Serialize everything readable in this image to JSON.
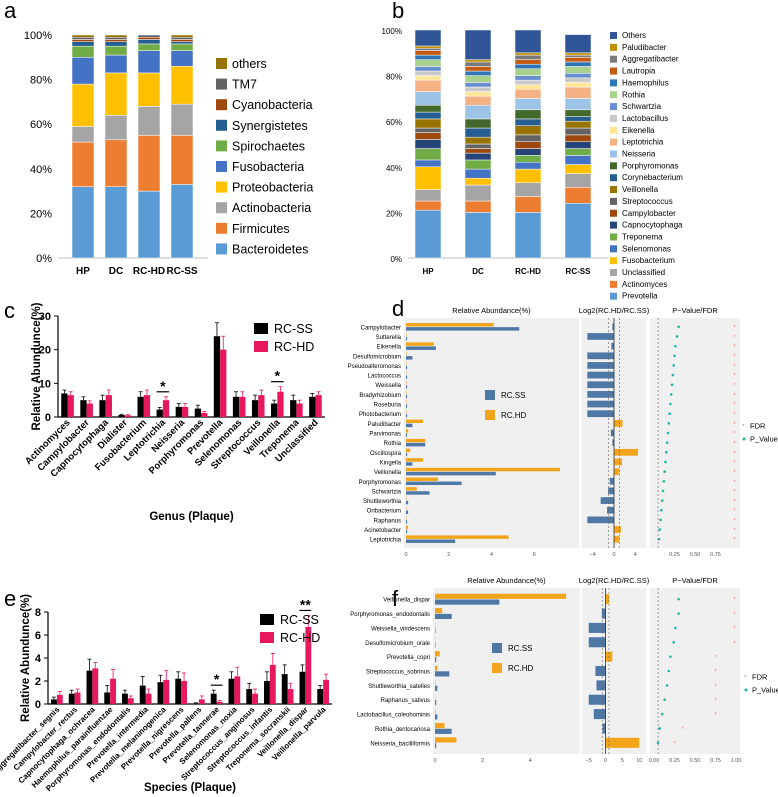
{
  "panel_letters": [
    "a",
    "b",
    "c",
    "d",
    "e",
    "f"
  ],
  "chart_data": [
    {
      "panel": "a",
      "type": "bar",
      "stacked": true,
      "categories": [
        "HP",
        "DC",
        "RC-HD",
        "RC-SS"
      ],
      "yticks": [
        "0%",
        "20%",
        "40%",
        "60%",
        "80%",
        "100%"
      ],
      "ylim": [
        0,
        100
      ],
      "legend_position": "right",
      "series": [
        {
          "name": "Bacteroidetes",
          "color": "#5B9BD5",
          "values": [
            32,
            32,
            30,
            33
          ]
        },
        {
          "name": "Firmicutes",
          "color": "#ED7D31",
          "values": [
            20,
            21,
            25,
            22
          ]
        },
        {
          "name": "Actinobacteria",
          "color": "#A5A5A5",
          "values": [
            7,
            11,
            13,
            14
          ]
        },
        {
          "name": "Proteobacteria",
          "color": "#FFC000",
          "values": [
            19,
            19,
            15,
            17
          ]
        },
        {
          "name": "Fusobacteria",
          "color": "#4472C4",
          "values": [
            12,
            8,
            10,
            7
          ]
        },
        {
          "name": "Spirochaetes",
          "color": "#70AD47",
          "values": [
            5,
            4,
            3,
            3
          ]
        },
        {
          "name": "Synergistetes",
          "color": "#255E91",
          "values": [
            2,
            2,
            2,
            1
          ]
        },
        {
          "name": "Cyanobacteria",
          "color": "#9E480E",
          "values": [
            1,
            1,
            1,
            1
          ]
        },
        {
          "name": "TM7",
          "color": "#636363",
          "values": [
            1,
            1,
            1,
            1
          ]
        },
        {
          "name": "others",
          "color": "#997300",
          "values": [
            1,
            1,
            0,
            1
          ]
        }
      ]
    },
    {
      "panel": "b",
      "type": "bar",
      "stacked": true,
      "categories": [
        "HP",
        "DC",
        "RC-HD",
        "RC-SS"
      ],
      "yticks": [
        "0%",
        "20%",
        "40%",
        "60%",
        "80%",
        "100%"
      ],
      "ylim": [
        0,
        100
      ],
      "legend_position": "right",
      "series": [
        {
          "name": "Prevotella",
          "color": "#5B9BD5",
          "values": [
            21,
            20,
            20,
            24
          ]
        },
        {
          "name": "Actinomyces",
          "color": "#ED7D31",
          "values": [
            4,
            5,
            7,
            7
          ]
        },
        {
          "name": "Unclassified",
          "color": "#A5A5A5",
          "values": [
            5,
            7,
            6,
            6
          ]
        },
        {
          "name": "Fusobacterium",
          "color": "#FFC000",
          "values": [
            10,
            3,
            6,
            4
          ]
        },
        {
          "name": "Selenomonas",
          "color": "#4472C4",
          "values": [
            3,
            4,
            3,
            4
          ]
        },
        {
          "name": "Treponema",
          "color": "#70AD47",
          "values": [
            5,
            4,
            3,
            3
          ]
        },
        {
          "name": "Capnocytophaga",
          "color": "#264478",
          "values": [
            4,
            3,
            3,
            3
          ]
        },
        {
          "name": "Campylobacter",
          "color": "#9E480E",
          "values": [
            3,
            2,
            3,
            3
          ]
        },
        {
          "name": "Streptococcus",
          "color": "#636363",
          "values": [
            2,
            2,
            3,
            3
          ]
        },
        {
          "name": "Veillonella",
          "color": "#997300",
          "values": [
            4,
            3,
            4,
            3
          ]
        },
        {
          "name": "Corynebacterium",
          "color": "#255E91",
          "values": [
            3,
            4,
            3,
            2
          ]
        },
        {
          "name": "Porphyromonas",
          "color": "#43682B",
          "values": [
            3,
            4,
            4,
            3
          ]
        },
        {
          "name": "Neisseria",
          "color": "#9DC3E6",
          "values": [
            6,
            6,
            5,
            5
          ]
        },
        {
          "name": "Leptotrichia",
          "color": "#F4B183",
          "values": [
            5,
            4,
            4,
            5
          ]
        },
        {
          "name": "Eikenella",
          "color": "#FFE699",
          "values": [
            2,
            2,
            2,
            2
          ]
        },
        {
          "name": "Lactobacillus",
          "color": "#C9C9C9",
          "values": [
            2,
            2,
            2,
            2
          ]
        },
        {
          "name": "Schwartzia",
          "color": "#698ED0",
          "values": [
            2,
            2,
            2,
            2
          ]
        },
        {
          "name": "Rothia",
          "color": "#A9D18E",
          "values": [
            3,
            3,
            3,
            3
          ]
        },
        {
          "name": "Haemophilus",
          "color": "#2E75B6",
          "values": [
            2,
            2,
            2,
            2
          ]
        },
        {
          "name": "Lautropia",
          "color": "#C55A11",
          "values": [
            2,
            2,
            2,
            2
          ]
        },
        {
          "name": "Aggregatibacter",
          "color": "#7B7B7B",
          "values": [
            1,
            2,
            2,
            1
          ]
        },
        {
          "name": "Paludibacter",
          "color": "#BF9000",
          "values": [
            1,
            1,
            1,
            1
          ]
        },
        {
          "name": "Others",
          "color": "#2F5597",
          "values": [
            7,
            13,
            10,
            8
          ]
        }
      ]
    },
    {
      "panel": "c",
      "type": "bar",
      "xlabel": "Genus (Plaque)",
      "ylabel": "Relative Abundunce(%)",
      "ylim": [
        0,
        30
      ],
      "yticks": [
        "0",
        "10",
        "20",
        "30"
      ],
      "legend_position": "top-right",
      "categories": [
        "Actinomyces",
        "Campylobacter",
        "Capnocytophaga",
        "Dialister",
        "Fusobacterium",
        "Leptotrichia",
        "Neisseria",
        "Porphyromonas",
        "Prevotella",
        "Selenomonas",
        "Streptococcus",
        "Veillonella",
        "Treponema",
        "Unclassified"
      ],
      "series": [
        {
          "name": "RC-SS",
          "color": "#000000",
          "values": [
            7,
            5,
            5,
            0.6,
            6,
            2.2,
            3,
            2.5,
            24,
            6,
            5,
            4,
            5,
            6
          ],
          "errors": [
            1,
            1,
            1.5,
            0.2,
            1.5,
            0.6,
            1,
            1,
            4,
            1.5,
            1.5,
            1,
            1.5,
            1
          ]
        },
        {
          "name": "RC-HD",
          "color": "#E6195F",
          "values": [
            6.5,
            4,
            6.5,
            0.5,
            6.5,
            5,
            3,
            1.2,
            20,
            6,
            6.5,
            7.5,
            4,
            6.5
          ],
          "errors": [
            1,
            0.8,
            1.5,
            0.2,
            1.5,
            1,
            1,
            0.4,
            4,
            1.5,
            1.5,
            1.5,
            1,
            1
          ]
        }
      ],
      "significance": [
        {
          "category": "Leptotrichia",
          "label": "*"
        },
        {
          "category": "Veillonella",
          "label": "*"
        }
      ]
    },
    {
      "panel": "d",
      "type": "bar",
      "orientation": "horizontal",
      "title_abundance": "Relative Abundance(%)",
      "title_log": "Log2(RC.HD/RC.SS)",
      "title_p": "P−Value/FDR",
      "categories": [
        "Campylobacter",
        "Sutterella",
        "Eikenella",
        "Desulfomicrobium",
        "Pseudoalteromonas",
        "Lactococcus",
        "Weissella",
        "Bradyrhizobium",
        "Roseburia",
        "Photobacterium",
        "Paludibacter",
        "Parvimonas",
        "Rothia",
        "Oscillospira",
        "Kingella",
        "Veillonella",
        "Porphyromonas",
        "Schwartzia",
        "Shuttleworthia",
        "Oribacterium",
        "Raphanus",
        "Acinetobacter",
        "Leptotrichia"
      ],
      "series": [
        {
          "name": "RC.SS",
          "color": "#4E79A7",
          "values": [
            5.3,
            0.05,
            1.4,
            0.3,
            0.05,
            0.05,
            0.05,
            0.05,
            0.05,
            0.05,
            0.3,
            0.05,
            0.9,
            0.05,
            0.3,
            4.2,
            2.6,
            1.1,
            0.1,
            0.1,
            0.05,
            0.05,
            2.3
          ]
        },
        {
          "name": "RC.HD",
          "color": "#F2A51A",
          "values": [
            4.1,
            0.02,
            1.3,
            0.02,
            0.02,
            0.02,
            0.02,
            0.02,
            0.02,
            0.02,
            0.8,
            0.1,
            0.9,
            0.2,
            0.8,
            7.2,
            1.5,
            0.5,
            0.02,
            0.02,
            0.02,
            0.1,
            4.8
          ]
        }
      ],
      "abundance_ticks": [
        "0",
        "2",
        "4",
        "6"
      ],
      "abundance_xlim": [
        0,
        8
      ],
      "log2_values": [
        -0.3,
        -5,
        -0.5,
        -5,
        -5,
        -5,
        -5,
        -5,
        -5,
        -5,
        1.6,
        -0.6,
        -0.3,
        4.5,
        1.5,
        1,
        -0.8,
        -1.1,
        -2.5,
        -1.3,
        -5,
        1.3,
        1
      ],
      "log2_ticks": [
        "−4",
        "0",
        "4"
      ],
      "log2_xlim": [
        -6,
        6
      ],
      "p_values": [
        0.3,
        0.28,
        0.26,
        0.25,
        0.24,
        0.23,
        0.22,
        0.21,
        0.2,
        0.19,
        0.18,
        0.17,
        0.16,
        0.15,
        0.14,
        0.13,
        0.12,
        0.11,
        0.1,
        0.09,
        0.08,
        0.07,
        0.06
      ],
      "fdr_values": [
        0.98,
        0.98,
        0.98,
        0.98,
        0.98,
        0.98,
        0.98,
        0.98,
        0.98,
        0.98,
        0.98,
        0.98,
        0.98,
        0.98,
        0.98,
        0.98,
        0.98,
        0.98,
        0.98,
        0.98,
        0.98,
        0.98,
        0.98
      ],
      "p_ticks": [
        "0.25",
        "0.50",
        "0.75"
      ],
      "p_legend": [
        "FDR",
        "P_Value"
      ]
    },
    {
      "panel": "e",
      "type": "bar",
      "xlabel": "Species (Plaque)",
      "ylabel": "Relative Abundunce(%)",
      "ylim": [
        0,
        8
      ],
      "yticks": [
        "0",
        "2",
        "4",
        "6",
        "8"
      ],
      "legend_position": "top-right",
      "categories": [
        "Aggregatibacter_segnis",
        "Campylobacter_rectus",
        "Capnocytophaga_ochracea",
        "Haemophilus_parainfluenzae",
        "Porphyromonas_endodontalis",
        "Prevotella_intermedia",
        "Prevotella_melaninogenica",
        "Prevotella_nigrescens",
        "Prevotella_pallens",
        "Prevotella_tannerae",
        "Selenomonas_noxia",
        "Streptococcus_anginosus",
        "Streptococcus_infantis",
        "Treponema_socranskii",
        "Veillonella_dispar",
        "Veillonella_parvula"
      ],
      "series": [
        {
          "name": "RC-SS",
          "color": "#000000",
          "values": [
            0.4,
            0.9,
            2.9,
            1,
            0.9,
            1.6,
            1.9,
            2.2,
            0.05,
            0.9,
            2.2,
            1.3,
            2,
            2.6,
            2.8,
            1.3
          ],
          "errors": [
            0.2,
            0.3,
            1,
            0.6,
            0.3,
            0.8,
            0.6,
            0.6,
            0.05,
            0.3,
            0.6,
            0.5,
            0.8,
            0.8,
            0.6,
            0.3
          ]
        },
        {
          "name": "RC-HD",
          "color": "#E6195F",
          "values": [
            0.8,
            1,
            3.1,
            2.2,
            0.5,
            0.9,
            2.1,
            2,
            0.4,
            0.2,
            2.4,
            0.9,
            3.4,
            1.3,
            6.7,
            2.1
          ],
          "errors": [
            0.3,
            0.3,
            0.5,
            0.8,
            0.2,
            0.4,
            0.8,
            0.7,
            0.3,
            0.1,
            0.8,
            0.4,
            1,
            0.5,
            1,
            0.5
          ]
        }
      ],
      "significance": [
        {
          "category": "Prevotella_tannerae",
          "label": "*"
        },
        {
          "category": "Veillonella_dispar",
          "label": "**"
        }
      ]
    },
    {
      "panel": "f",
      "type": "bar",
      "orientation": "horizontal",
      "title_abundance": "Relative Abundance(%)",
      "title_log": "Log2(RC.HD/RC.SS)",
      "title_p": "P−Value/FDR",
      "categories": [
        "Veillonella_dispar",
        "Porphyromonas_endodontalis",
        "Weissella_viridescens",
        "Desulfomicrobium_orale",
        "Prevotella_copri",
        "Streptococcus_sobrinus",
        "Shuttleworthia_satelles",
        "Raphanus_sativus",
        "Lactobacillus_coleohominis",
        "Rothia_dentocariosa",
        "Neisseria_bacilliformis"
      ],
      "series": [
        {
          "name": "RC.SS",
          "color": "#4E79A7",
          "values": [
            2.7,
            0.7,
            0.02,
            0.02,
            0.05,
            0.6,
            0.1,
            0.05,
            0.1,
            0.7,
            0.05
          ]
        },
        {
          "name": "RC.HD",
          "color": "#F2A51A",
          "values": [
            5.5,
            0.3,
            0.01,
            0.01,
            0.2,
            0.1,
            0.02,
            0.01,
            0.02,
            0.4,
            0.9
          ]
        }
      ],
      "abundance_ticks": [
        "0",
        "2",
        "4"
      ],
      "abundance_xlim": [
        0,
        6
      ],
      "log2_values": [
        1,
        -1.1,
        -5,
        -5,
        2,
        -3,
        -2.7,
        -5,
        -3.5,
        -0.9,
        10
      ],
      "log2_ticks": [
        "−5",
        "0",
        "5",
        "10"
      ],
      "log2_xlim": [
        -7,
        12
      ],
      "p_values": [
        0.3,
        0.3,
        0.26,
        0.24,
        0.2,
        0.18,
        0.16,
        0.13,
        0.1,
        0.07,
        0.05
      ],
      "fdr_values": [
        0.98,
        0.98,
        0.98,
        0.98,
        0.75,
        0.75,
        0.75,
        0.75,
        0.75,
        0.35,
        0.25
      ],
      "p_ticks": [
        "0.00",
        "0.25",
        "0.50",
        "0.75",
        "1.00"
      ],
      "p_legend": [
        "FDR",
        "P_Value"
      ]
    }
  ]
}
